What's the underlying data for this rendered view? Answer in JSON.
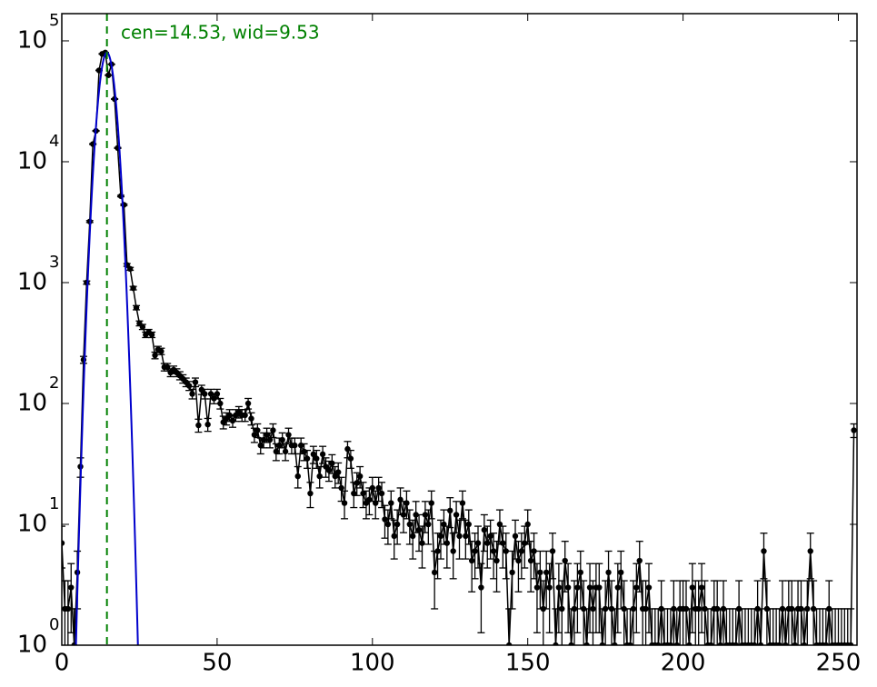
{
  "chart_data": {
    "type": "errorbar",
    "annotation": "cen=14.53, wid=9.53",
    "xlim": [
      0,
      256
    ],
    "xticks": [
      0,
      50,
      100,
      150,
      200,
      250
    ],
    "ylim": [
      1,
      168000
    ],
    "log_y": true,
    "yticks": [
      {
        "value": 1,
        "label": "10",
        "exponent": "0"
      },
      {
        "value": 10,
        "label": "10",
        "exponent": "1"
      },
      {
        "value": 100,
        "label": "10",
        "exponent": "2"
      },
      {
        "value": 1000,
        "label": "10",
        "exponent": "3"
      },
      {
        "value": 10000,
        "label": "10",
        "exponent": "4"
      },
      {
        "value": 100000,
        "label": "10",
        "exponent": "5"
      }
    ],
    "error_bars": "poisson",
    "color": "#000000",
    "x": [
      0,
      1,
      2,
      3,
      4,
      5,
      6,
      7,
      8,
      9,
      10,
      11,
      12,
      13,
      14,
      15,
      16,
      17,
      18,
      19,
      20,
      21,
      22,
      23,
      24,
      25,
      26,
      27,
      28,
      29,
      30,
      31,
      32,
      33,
      34,
      35,
      36,
      37,
      38,
      39,
      40,
      41,
      42,
      43,
      44,
      45,
      46,
      47,
      48,
      49,
      50,
      51,
      52,
      53,
      54,
      55,
      56,
      57,
      58,
      59,
      60,
      61,
      62,
      63,
      64,
      65,
      66,
      67,
      68,
      69,
      70,
      71,
      72,
      73,
      74,
      75,
      76,
      77,
      78,
      79,
      80,
      81,
      82,
      83,
      84,
      85,
      86,
      87,
      88,
      89,
      90,
      91,
      92,
      93,
      94,
      95,
      96,
      97,
      98,
      99,
      100,
      101,
      102,
      103,
      104,
      105,
      106,
      107,
      108,
      109,
      110,
      111,
      112,
      113,
      114,
      115,
      116,
      117,
      118,
      119,
      120,
      121,
      122,
      123,
      124,
      125,
      126,
      127,
      128,
      129,
      130,
      131,
      132,
      133,
      134,
      135,
      136,
      137,
      138,
      139,
      140,
      141,
      142,
      143,
      144,
      145,
      146,
      147,
      148,
      149,
      150,
      151,
      152,
      153,
      154,
      155,
      156,
      157,
      158,
      159,
      160,
      161,
      162,
      163,
      164,
      165,
      166,
      167,
      168,
      169,
      170,
      171,
      172,
      173,
      174,
      175,
      176,
      177,
      178,
      179,
      180,
      181,
      182,
      183,
      184,
      185,
      186,
      187,
      188,
      189,
      190,
      191,
      192,
      193,
      194,
      195,
      196,
      197,
      198,
      199,
      200,
      201,
      202,
      203,
      204,
      205,
      206,
      207,
      208,
      209,
      210,
      211,
      212,
      213,
      214,
      215,
      216,
      217,
      218,
      219,
      220,
      221,
      222,
      223,
      224,
      225,
      226,
      227,
      228,
      229,
      230,
      231,
      232,
      233,
      234,
      235,
      236,
      237,
      238,
      239,
      240,
      241,
      242,
      243,
      244,
      245,
      246,
      247,
      248,
      249,
      250,
      251,
      252,
      253,
      254,
      255
    ],
    "values": [
      7,
      2,
      2,
      3,
      1,
      4,
      30,
      230,
      1000,
      3200,
      14000,
      18000,
      57000,
      78000,
      80000,
      52000,
      64000,
      33000,
      13000,
      5200,
      4400,
      1400,
      1300,
      900,
      620,
      460,
      430,
      370,
      390,
      370,
      250,
      280,
      270,
      200,
      200,
      180,
      190,
      180,
      170,
      160,
      150,
      140,
      120,
      150,
      66,
      130,
      120,
      67,
      120,
      110,
      120,
      100,
      70,
      75,
      80,
      72,
      80,
      85,
      80,
      80,
      100,
      75,
      55,
      60,
      45,
      50,
      55,
      50,
      60,
      40,
      45,
      50,
      40,
      55,
      45,
      45,
      25,
      45,
      40,
      35,
      18,
      38,
      35,
      25,
      38,
      30,
      28,
      32,
      25,
      27,
      20,
      15,
      42,
      35,
      18,
      22,
      25,
      18,
      15,
      16,
      20,
      15,
      20,
      18,
      11,
      10,
      15,
      8,
      10,
      16,
      12,
      15,
      10,
      8,
      12,
      9,
      7,
      12,
      10,
      15,
      4,
      6,
      8,
      10,
      7,
      13,
      6,
      12,
      8,
      15,
      8,
      10,
      5,
      6,
      7,
      3,
      9,
      7,
      8,
      6,
      5,
      10,
      7,
      6,
      1,
      4,
      8,
      5,
      6,
      7,
      10,
      5,
      6,
      3,
      4,
      2,
      4,
      3,
      6,
      1,
      3,
      2,
      5,
      3,
      1,
      2,
      3,
      4,
      2,
      1,
      3,
      2,
      3,
      3,
      1,
      2,
      4,
      2,
      1,
      3,
      4,
      2,
      1,
      1,
      2,
      3,
      5,
      2,
      2,
      3,
      1,
      1,
      1,
      2,
      1,
      1,
      1,
      2,
      1,
      2,
      2,
      2,
      1,
      3,
      2,
      2,
      3,
      2,
      1,
      1,
      2,
      2,
      1,
      2,
      1,
      1,
      1,
      1,
      2,
      1,
      1,
      1,
      1,
      1,
      2,
      1,
      6,
      2,
      1,
      1,
      1,
      1,
      2,
      1,
      2,
      2,
      1,
      2,
      2,
      1,
      2,
      6,
      2,
      1,
      1,
      1,
      1,
      2,
      1,
      1,
      1,
      1,
      1,
      1,
      1,
      60
    ],
    "fit": {
      "type": "gaussian",
      "amplitude": 80000,
      "center": 14.53,
      "sigma": 2.1,
      "color": "#0000cc"
    },
    "vline": {
      "x": 14.53,
      "color": "#008000"
    }
  }
}
